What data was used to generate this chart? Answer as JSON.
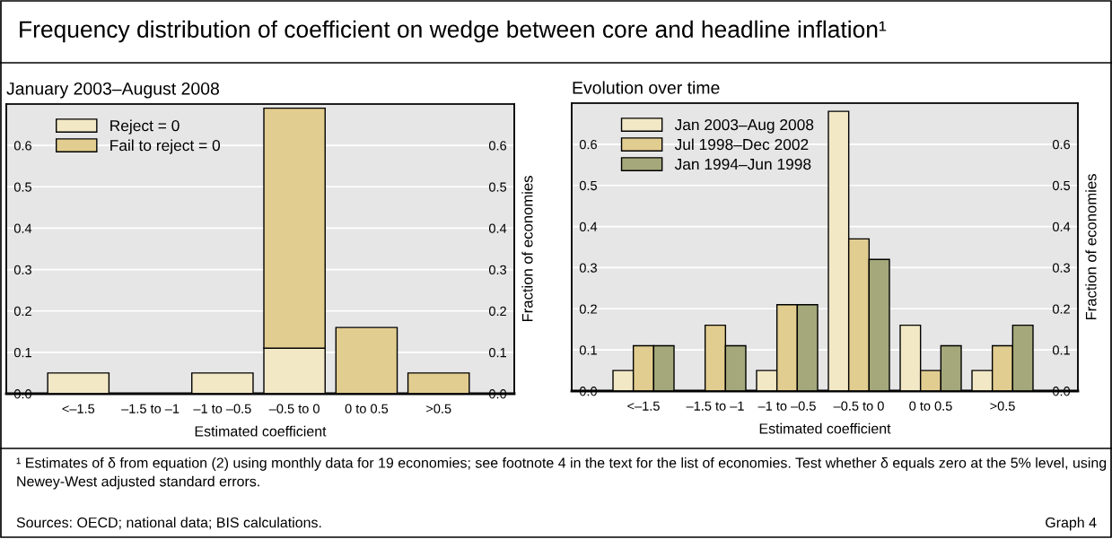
{
  "chart_data": [
    {
      "type": "bar",
      "title": "Frequency distribution of coefficient on wedge between core and headline inflation¹",
      "subtitle": "January 2003–August 2008",
      "xlabel": "Estimated coefficient",
      "y2label": "Fraction of economies",
      "categories": [
        "<–1.5",
        "–1.5 to –1",
        "–1 to –0.5",
        "–0.5 to 0",
        "0 to 0.5",
        ">0.5"
      ],
      "stacked": true,
      "series": [
        {
          "name": "Reject = 0",
          "color": "#f2e8c6",
          "values": [
            0.05,
            0,
            0.05,
            0.11,
            0,
            0
          ]
        },
        {
          "name": "Fail to reject = 0",
          "color": "#e2cd90",
          "values": [
            0,
            0,
            0,
            0.58,
            0.16,
            0.05
          ]
        }
      ],
      "ylim": [
        0,
        0.7
      ],
      "yticks": [
        {
          "value": 0,
          "label": "0.0"
        },
        0.1,
        0.2,
        0.3,
        0.4,
        0.5,
        0.6
      ],
      "y2lim": [
        0,
        0.7
      ],
      "y2ticks": [
        {
          "value": 0,
          "label": "0.0"
        },
        0.1,
        0.2,
        0.3,
        0.4,
        0.5,
        0.6
      ],
      "grid": true,
      "legend": "top left",
      "annotations": [
        "¹ Estimates of δ from equation (2) using monthly data for 19 economies; see footnote 4 in the text for the list of economies. Test whether δ equals zero at the 5% level, using Newey-West adjusted standard errors.",
        "Sources: OECD; national data; BIS calculations.",
        "Graph 4"
      ]
    },
    {
      "type": "bar",
      "subtitle": "Evolution over time",
      "xlabel": "Estimated coefficient",
      "y2label": "Fraction of economies",
      "categories": [
        "<–1.5",
        "–1.5 to –1",
        "–1 to –0.5",
        "–0.5 to 0",
        "0 to 0.5",
        ">0.5"
      ],
      "series": [
        {
          "name": "Jan 2003–Aug 2008",
          "color": "#f2e8c6",
          "values": [
            0.05,
            0,
            0.05,
            0.68,
            0.16,
            0.05
          ]
        },
        {
          "name": "Jul 1998–Dec 2002",
          "color": "#e2cd90",
          "values": [
            0.11,
            0.16,
            0.21,
            0.37,
            0.05,
            0.11
          ]
        },
        {
          "name": "Jan 1994–Jun 1998",
          "color": "#a5a87a",
          "values": [
            0.11,
            0.11,
            0.21,
            0.32,
            0.11,
            0.16
          ]
        }
      ],
      "ylim": [
        0,
        0.7
      ],
      "yticks": [
        {
          "value": 0,
          "label": "0.0"
        },
        0.1,
        0.2,
        0.3,
        0.4,
        0.5,
        0.6
      ],
      "y2lim": [
        0,
        0.7
      ],
      "y2ticks": [
        {
          "value": 0,
          "label": "0.0"
        },
        0.1,
        0.2,
        0.3,
        0.4,
        0.5,
        0.6
      ],
      "grid": true,
      "legend": "top left"
    }
  ]
}
